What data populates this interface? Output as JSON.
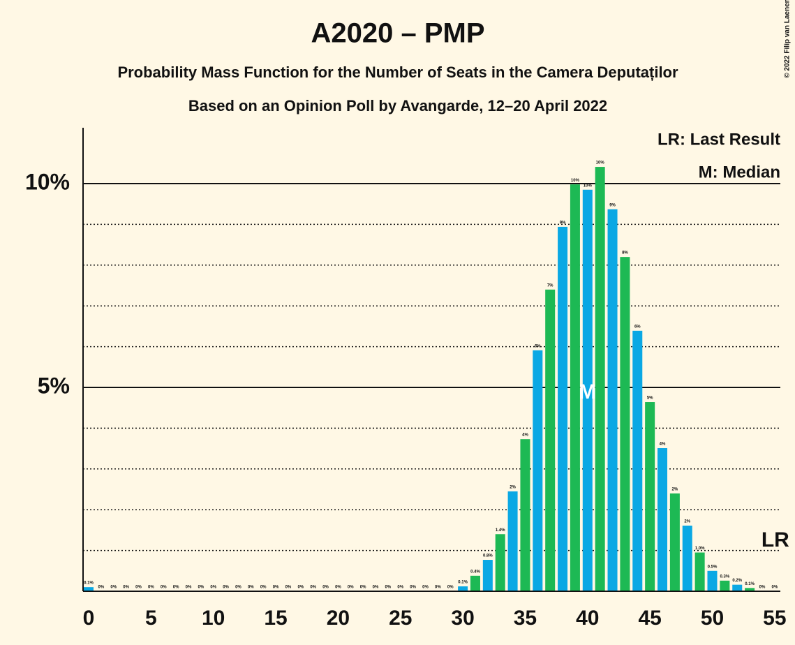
{
  "chart_data": {
    "type": "bar",
    "title": "A2020 – PMP",
    "subtitles": [
      "Probability Mass Function for the Number of Seats in the Camera Deputaților",
      "Based on an Opinion Poll by Avangarde, 12–20 April 2022"
    ],
    "x": [
      0,
      1,
      2,
      3,
      4,
      5,
      6,
      7,
      8,
      9,
      10,
      11,
      12,
      13,
      14,
      15,
      16,
      17,
      18,
      19,
      20,
      21,
      22,
      23,
      24,
      25,
      26,
      27,
      28,
      29,
      30,
      31,
      32,
      33,
      34,
      35,
      36,
      37,
      38,
      39,
      40,
      41,
      42,
      43,
      44,
      45,
      46,
      47,
      48,
      49,
      50,
      51,
      52,
      53,
      54,
      55
    ],
    "values": [
      0.1,
      0,
      0,
      0,
      0,
      0,
      0,
      0,
      0,
      0,
      0,
      0,
      0,
      0,
      0,
      0,
      0,
      0,
      0,
      0,
      0,
      0,
      0,
      0,
      0,
      0,
      0,
      0,
      0,
      0,
      0.12,
      0.38,
      0.77,
      1.4,
      2.45,
      3.73,
      5.91,
      7.4,
      8.94,
      9.98,
      9.85,
      10.41,
      9.37,
      8.2,
      6.39,
      4.64,
      3.51,
      2.4,
      1.61,
      0.95,
      0.5,
      0.26,
      0.16,
      0.08,
      0,
      0
    ],
    "value_labels": [
      "0.1%",
      "0%",
      "0%",
      "0%",
      "0%",
      "0%",
      "0%",
      "0%",
      "0%",
      "0%",
      "0%",
      "0%",
      "0%",
      "0%",
      "0%",
      "0%",
      "0%",
      "0%",
      "0%",
      "0%",
      "0%",
      "0%",
      "0%",
      "0%",
      "0%",
      "0%",
      "0%",
      "0%",
      "0%",
      "0%",
      "0.1%",
      "0.4%",
      "0.8%",
      "1.4%",
      "2%",
      "4%",
      "6%",
      "7%",
      "9%",
      "10%",
      "10%",
      "10%",
      "9%",
      "8%",
      "6%",
      "5%",
      "4%",
      "2%",
      "2%",
      "1.0%",
      "0.5%",
      "0.3%",
      "0.2%",
      "0.1%",
      "0%",
      "0%"
    ],
    "colors": [
      "#0aa8e4",
      "#1db954"
    ],
    "ylim": [
      0,
      11.37
    ],
    "yticks": [
      {
        "value": 5,
        "label": "5%"
      },
      {
        "value": 10,
        "label": "10%"
      }
    ],
    "minor_yticks": [
      1,
      2,
      3,
      4,
      6,
      7,
      8,
      9
    ],
    "xticks": [
      0,
      5,
      10,
      15,
      20,
      25,
      30,
      35,
      40,
      45,
      50,
      55
    ],
    "legend": [
      "LR: Last Result",
      "M: Median"
    ],
    "median": {
      "x": 40,
      "label": "M"
    },
    "last_result": {
      "x": 55,
      "label": "LR"
    },
    "copyright": "© 2022 Filip van Laenen"
  }
}
